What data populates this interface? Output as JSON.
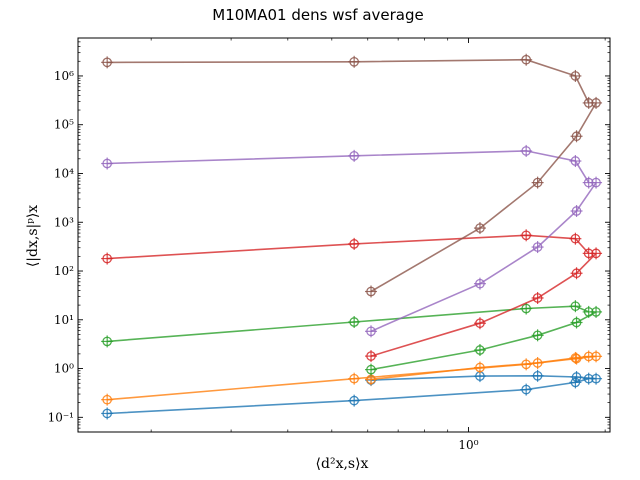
{
  "chart_data": {
    "type": "line",
    "title": "M10MA01 dens wsf average",
    "xlabel": "⟨d²x,s⟩x",
    "ylabel": "⟨|dx,s|ᵖ⟩x",
    "xscale": "log",
    "yscale": "log",
    "xlim": [
      0.138,
      2.05
    ],
    "ylim": [
      0.05,
      6000000
    ],
    "x_ticks": [
      {
        "value": 1.0,
        "label": "10⁰"
      }
    ],
    "y_ticks": [
      {
        "value": 0.1,
        "label": "10⁻¹"
      },
      {
        "value": 1,
        "label": "10⁰"
      },
      {
        "value": 10,
        "label": "10¹"
      },
      {
        "value": 100,
        "label": "10²"
      },
      {
        "value": 1000,
        "label": "10³"
      },
      {
        "value": 10000,
        "label": "10⁴"
      },
      {
        "value": 100000,
        "label": "10⁵"
      },
      {
        "value": 1000000,
        "label": "10⁶"
      }
    ],
    "grid": false,
    "legend": "none",
    "series": [
      {
        "color": "#1f77b4",
        "marker": "circle",
        "x": [
          0.16,
          0.56,
          1.34,
          1.72,
          1.84
        ],
        "y": [
          0.12,
          0.22,
          0.37,
          0.52,
          0.62
        ]
      },
      {
        "color": "#1f77b4",
        "marker": "circle",
        "x": [
          0.61,
          1.06,
          1.42,
          1.73,
          1.91
        ],
        "y": [
          0.58,
          0.7,
          0.71,
          0.67,
          0.62
        ]
      },
      {
        "color": "#ff7f0e",
        "marker": "circle",
        "x": [
          0.16,
          0.56,
          1.34,
          1.72,
          1.84
        ],
        "y": [
          0.23,
          0.62,
          1.22,
          1.65,
          1.77
        ]
      },
      {
        "color": "#ff7f0e",
        "marker": "circle",
        "x": [
          0.61,
          1.06,
          1.42,
          1.73,
          1.91
        ],
        "y": [
          0.6,
          1.05,
          1.3,
          1.6,
          1.78
        ]
      },
      {
        "color": "#2ca02c",
        "marker": "circle",
        "x": [
          0.16,
          0.56,
          1.34,
          1.72,
          1.84
        ],
        "y": [
          3.6,
          9.0,
          17.0,
          19.0,
          14.5
        ]
      },
      {
        "color": "#2ca02c",
        "marker": "circle",
        "x": [
          0.61,
          1.06,
          1.42,
          1.73,
          1.91
        ],
        "y": [
          0.95,
          2.4,
          4.8,
          8.8,
          14.5
        ]
      },
      {
        "color": "#d62728",
        "marker": "circle",
        "x": [
          0.16,
          0.56,
          1.34,
          1.72,
          1.84
        ],
        "y": [
          180,
          360,
          540,
          460,
          230
        ]
      },
      {
        "color": "#d62728",
        "marker": "circle",
        "x": [
          0.61,
          1.06,
          1.42,
          1.73,
          1.91
        ],
        "y": [
          1.8,
          8.5,
          28,
          90,
          230
        ]
      },
      {
        "color": "#9467bd",
        "marker": "circle",
        "x": [
          0.16,
          0.56,
          1.34,
          1.72,
          1.84
        ],
        "y": [
          16000,
          23000,
          29000,
          18000,
          6500
        ]
      },
      {
        "color": "#9467bd",
        "marker": "circle",
        "x": [
          0.61,
          1.06,
          1.42,
          1.73,
          1.91
        ],
        "y": [
          5.8,
          55,
          310,
          1700,
          6500
        ]
      },
      {
        "color": "#8c564b",
        "marker": "circle",
        "x": [
          0.16,
          0.56,
          1.34,
          1.72,
          1.84
        ],
        "y": [
          1900000,
          1950000,
          2150000,
          1000000,
          280000
        ]
      },
      {
        "color": "#8c564b",
        "marker": "circle",
        "x": [
          0.61,
          1.06,
          1.42,
          1.73,
          1.91
        ],
        "y": [
          38,
          760,
          6500,
          58000,
          280000
        ]
      }
    ]
  }
}
